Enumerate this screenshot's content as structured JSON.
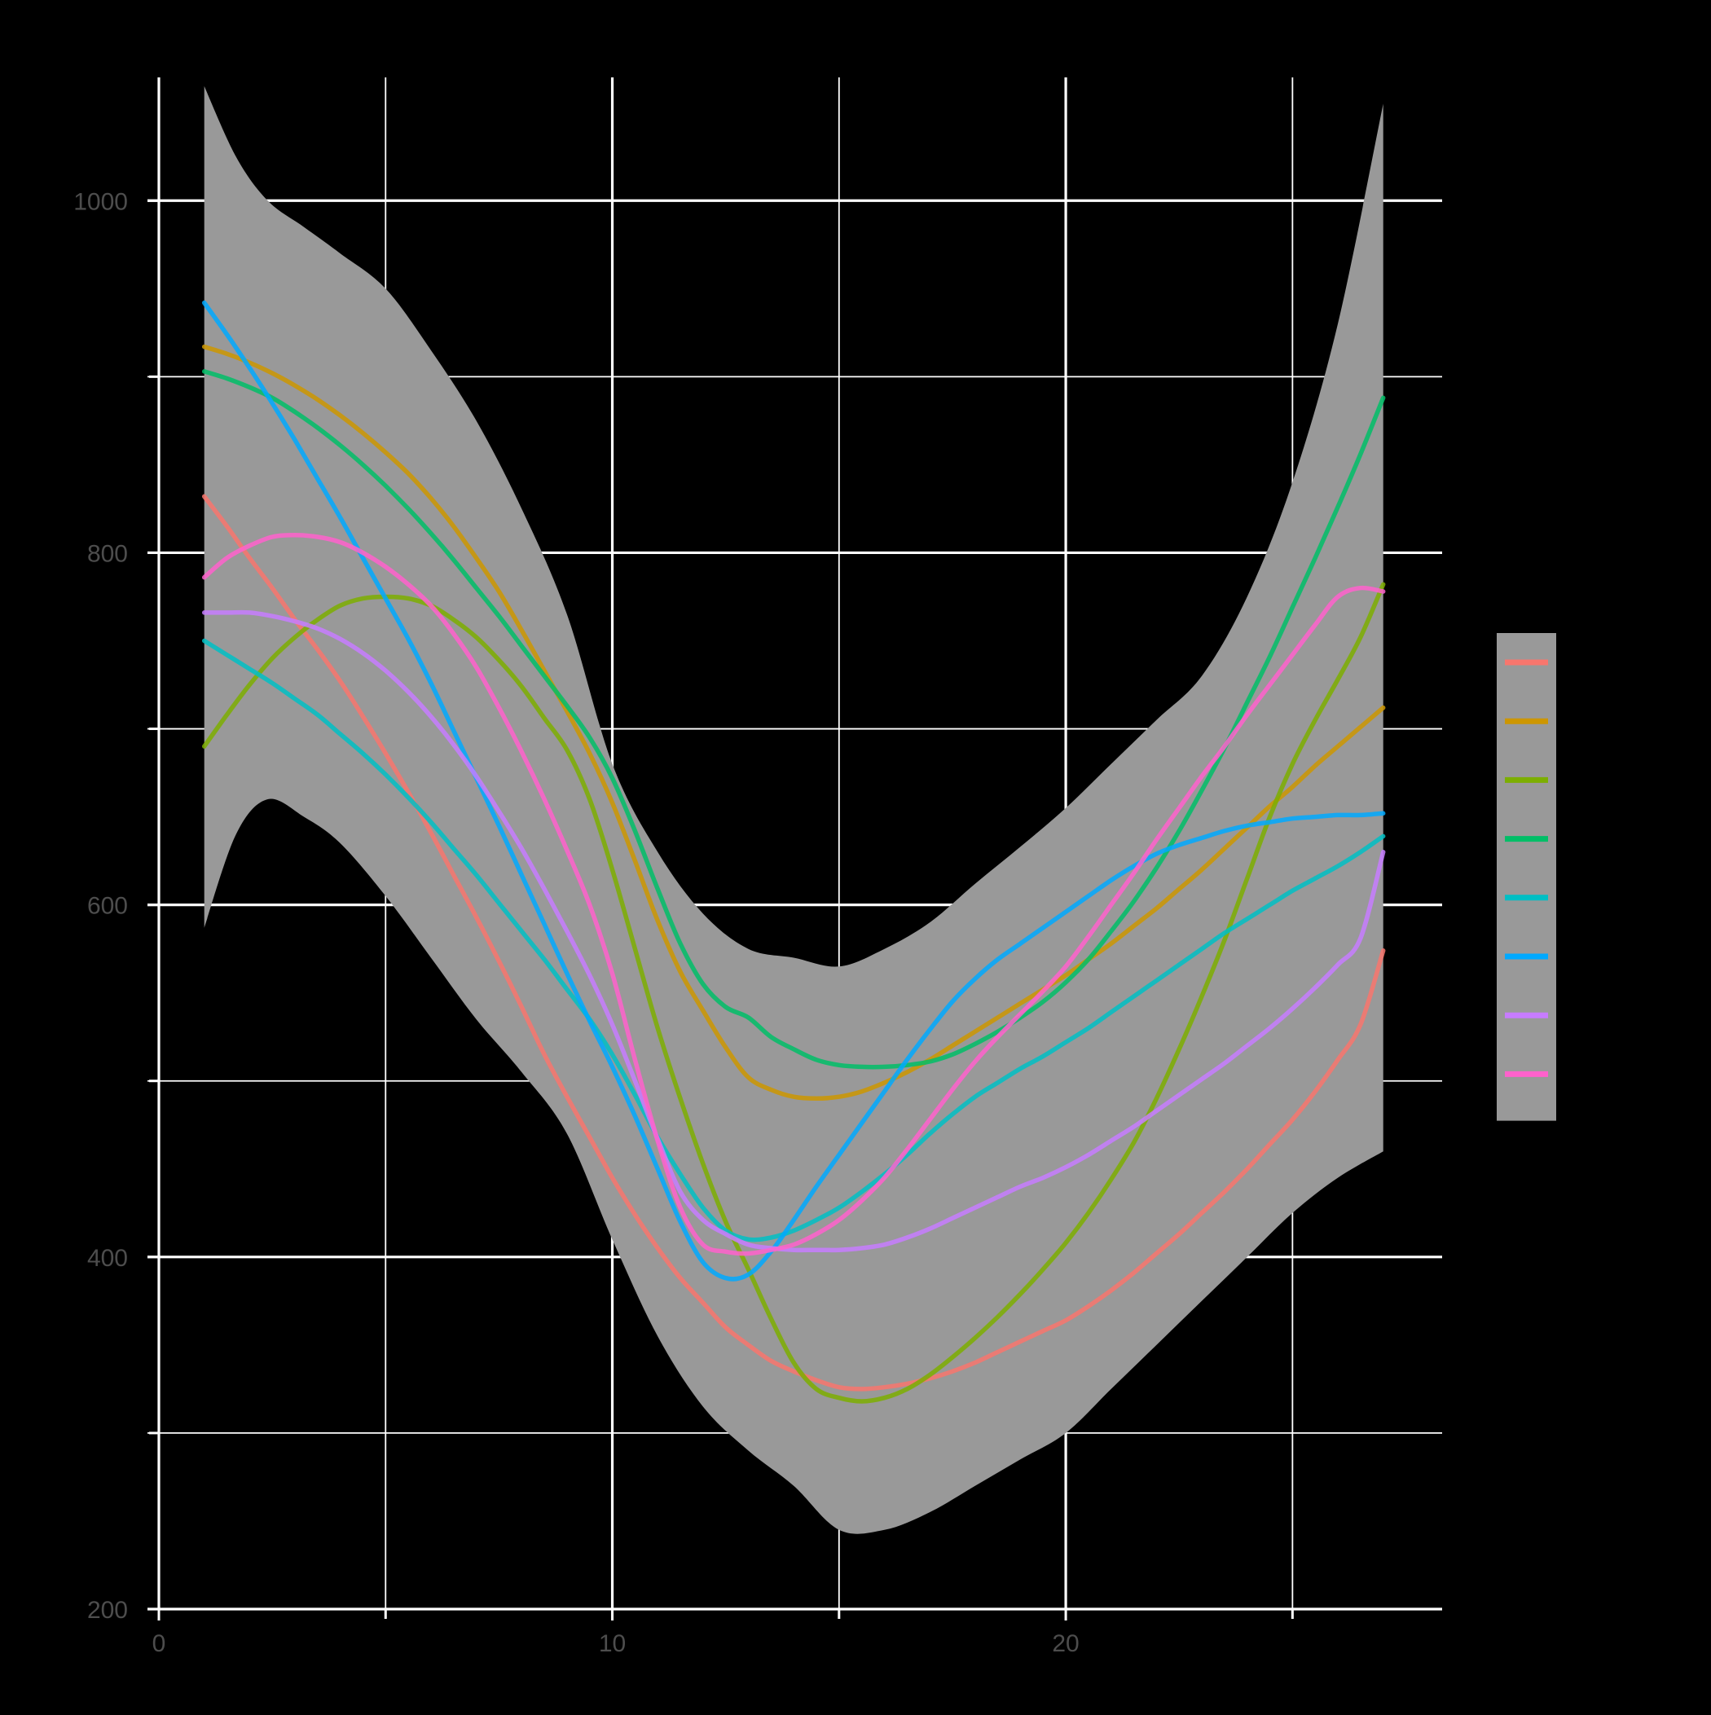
{
  "chart_data": {
    "type": "line",
    "title": "",
    "xlabel": "",
    "ylabel": "",
    "background": "#000000",
    "grid": true,
    "grid_color": "#ffffff",
    "tick_label_color": "#4d4d4d",
    "confidence_band_color": "#999999",
    "xlim": [
      0,
      28.3
    ],
    "ylim": [
      200,
      1070
    ],
    "x_ticks": [
      {
        "value": 0,
        "label": "0"
      },
      {
        "value": 10,
        "label": "10"
      },
      {
        "value": 20,
        "label": "20"
      }
    ],
    "x_minor_ticks": [
      5,
      15,
      25
    ],
    "y_ticks": [
      {
        "value": 200,
        "label": "200"
      },
      {
        "value": 400,
        "label": "400"
      },
      {
        "value": 600,
        "label": "600"
      },
      {
        "value": 800,
        "label": "800"
      },
      {
        "value": 1000,
        "label": "1000"
      }
    ],
    "y_minor_ticks": [
      300,
      500,
      700,
      900
    ],
    "legend": {
      "position": "right",
      "background": "#999999",
      "title": ""
    },
    "band": {
      "x": [
        1,
        1.7,
        2.4,
        3.2,
        4,
        5,
        6,
        7,
        8,
        9,
        10,
        11,
        12,
        13,
        14,
        15,
        16,
        17,
        18,
        19,
        20,
        21,
        22,
        23,
        24,
        25,
        26,
        27
      ],
      "upper": [
        1065,
        1025,
        1000,
        985,
        970,
        950,
        915,
        875,
        825,
        765,
        680,
        630,
        595,
        575,
        570,
        565,
        575,
        590,
        612,
        633,
        655,
        680,
        705,
        730,
        775,
        840,
        930,
        1055
      ],
      "lower": [
        587,
        640,
        660,
        650,
        635,
        605,
        570,
        535,
        505,
        470,
        410,
        355,
        315,
        290,
        270,
        245,
        245,
        255,
        270,
        285,
        300,
        325,
        350,
        375,
        400,
        425,
        445,
        460
      ]
    },
    "x": [
      1,
      1.5,
      2,
      2.5,
      3,
      3.5,
      4,
      4.5,
      5,
      5.5,
      6,
      6.5,
      7,
      7.5,
      8,
      8.5,
      9,
      9.5,
      10,
      10.5,
      11,
      11.5,
      12,
      12.5,
      13,
      13.5,
      14,
      14.5,
      15,
      15.5,
      16,
      16.5,
      17,
      17.5,
      18,
      18.5,
      19,
      19.5,
      20,
      20.5,
      21,
      21.5,
      22,
      22.5,
      23,
      23.5,
      24,
      24.5,
      25,
      25.5,
      26,
      26.5,
      27
    ],
    "series": [
      {
        "color": "#F8766D",
        "values": [
          832,
          815,
          797,
          780,
          762,
          745,
          727,
          707,
          686,
          664,
          641,
          617,
          593,
          568,
          542,
          515,
          491,
          468,
          445,
          424,
          405,
          388,
          374,
          360,
          350,
          341,
          335,
          330,
          326,
          325,
          326,
          328,
          331,
          335,
          340,
          346,
          352,
          358,
          364,
          372,
          381,
          391,
          402,
          413,
          425,
          437,
          450,
          464,
          478,
          494,
          512,
          532,
          574
        ]
      },
      {
        "color": "#CD9600",
        "values": [
          917,
          913,
          908,
          902,
          895,
          887,
          878,
          868,
          857,
          845,
          831,
          815,
          797,
          778,
          756,
          733,
          710,
          686,
          658,
          625,
          591,
          562,
          540,
          519,
          502,
          495,
          491,
          490,
          491,
          494,
          499,
          505,
          512,
          520,
          528,
          536,
          544,
          552,
          560,
          569,
          578,
          588,
          598,
          609,
          620,
          632,
          644,
          656,
          667,
          679,
          690,
          701,
          712
        ]
      },
      {
        "color": "#7CAE00",
        "values": [
          690,
          708,
          725,
          740,
          752,
          762,
          770,
          774,
          775,
          774,
          770,
          762,
          752,
          739,
          724,
          706,
          688,
          660,
          620,
          575,
          530,
          490,
          453,
          420,
          393,
          365,
          340,
          325,
          320,
          318,
          320,
          325,
          333,
          343,
          354,
          366,
          379,
          393,
          408,
          425,
          444,
          465,
          490,
          518,
          548,
          580,
          615,
          650,
          680,
          705,
          728,
          752,
          782
        ]
      },
      {
        "color": "#00BE67",
        "values": [
          903,
          899,
          894,
          888,
          880,
          871,
          861,
          850,
          838,
          825,
          811,
          796,
          780,
          764,
          747,
          730,
          713,
          695,
          672,
          642,
          609,
          578,
          555,
          542,
          536,
          525,
          518,
          512,
          509,
          508,
          508,
          509,
          511,
          515,
          521,
          528,
          536,
          545,
          556,
          569,
          585,
          602,
          621,
          642,
          665,
          689,
          715,
          741,
          769,
          797,
          826,
          856,
          888
        ]
      },
      {
        "color": "#00BFC4",
        "values": [
          750,
          742,
          734,
          726,
          717,
          708,
          697,
          686,
          674,
          661,
          647,
          632,
          617,
          601,
          585,
          569,
          552,
          535,
          515,
          492,
          468,
          447,
          428,
          415,
          410,
          411,
          415,
          421,
          428,
          437,
          447,
          458,
          470,
          481,
          491,
          499,
          507,
          514,
          522,
          530,
          539,
          548,
          557,
          566,
          575,
          584,
          592,
          600,
          608,
          615,
          622,
          630,
          639
        ]
      },
      {
        "color": "#00A9FF",
        "values": [
          942,
          924,
          905,
          885,
          864,
          842,
          820,
          797,
          774,
          751,
          726,
          699,
          672,
          645,
          617,
          589,
          561,
          534,
          508,
          480,
          450,
          420,
          397,
          388,
          390,
          403,
          421,
          440,
          458,
          476,
          494,
          512,
          529,
          545,
          558,
          569,
          578,
          587,
          596,
          605,
          614,
          622,
          629,
          634,
          638,
          642,
          645,
          647,
          649,
          650,
          651,
          651,
          652
        ]
      },
      {
        "color": "#C77CFF",
        "values": [
          766,
          766,
          766,
          764,
          761,
          757,
          751,
          743,
          733,
          721,
          707,
          691,
          673,
          653,
          632,
          609,
          585,
          560,
          532,
          500,
          467,
          437,
          421,
          413,
          407,
          405,
          404,
          404,
          404,
          405,
          407,
          411,
          416,
          422,
          428,
          434,
          440,
          445,
          451,
          458,
          466,
          474,
          483,
          492,
          501,
          510,
          520,
          530,
          541,
          553,
          566,
          581,
          630
        ]
      },
      {
        "color": "#FF61CC",
        "values": [
          786,
          797,
          804,
          809,
          810,
          809,
          806,
          800,
          792,
          782,
          770,
          754,
          735,
          712,
          687,
          660,
          631,
          600,
          561,
          512,
          466,
          428,
          407,
          403,
          402,
          404,
          407,
          413,
          421,
          432,
          445,
          461,
          478,
          495,
          511,
          525,
          538,
          551,
          565,
          582,
          600,
          618,
          637,
          655,
          673,
          690,
          708,
          725,
          742,
          759,
          775,
          780,
          778
        ]
      }
    ]
  }
}
